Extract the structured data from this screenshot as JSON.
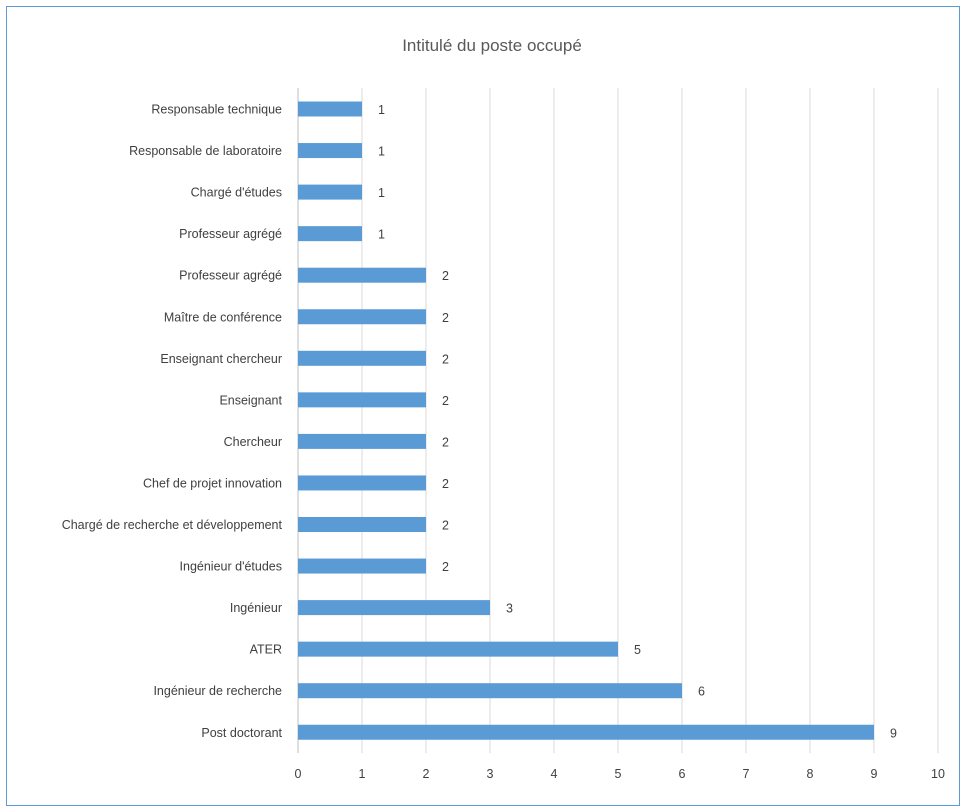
{
  "chart_data": {
    "type": "bar",
    "orientation": "horizontal",
    "title": "Intitulé du poste occupé",
    "xlabel": "",
    "ylabel": "",
    "xlim": [
      0,
      10
    ],
    "xticks": [
      0,
      1,
      2,
      3,
      4,
      5,
      6,
      7,
      8,
      9,
      10
    ],
    "grid": true,
    "legend": "none",
    "bar_color": "#5b9bd5",
    "categories": [
      "Responsable technique",
      "Responsable de laboratoire",
      "Chargé d'études",
      "Professeur agrégé",
      "Professeur agrégé",
      "Maître de conférence",
      "Enseignant chercheur",
      "Enseignant",
      "Chercheur",
      "Chef de projet innovation",
      "Chargé de recherche et développement",
      "Ingénieur d'études",
      "Ingénieur",
      "ATER",
      "Ingénieur de recherche",
      "Post doctorant"
    ],
    "values": [
      1,
      1,
      1,
      1,
      2,
      2,
      2,
      2,
      2,
      2,
      2,
      2,
      3,
      5,
      6,
      9
    ]
  }
}
